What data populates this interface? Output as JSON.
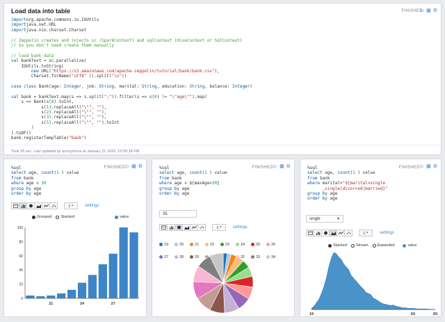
{
  "top": {
    "title": "Load data into table",
    "status": "FINISHED",
    "code_lines": [
      [
        [
          "kw",
          "import"
        ],
        [
          "",
          "org.apache.commons.io.IOUtils"
        ]
      ],
      [
        [
          "kw",
          "import"
        ],
        [
          "",
          "java.net.URL"
        ]
      ],
      [
        [
          "kw",
          "import"
        ],
        [
          "",
          "java.nio.charset.Charset"
        ]
      ],
      [
        [
          "",
          ""
        ]
      ],
      [
        [
          "cm",
          "// Zeppelin creates and injects sc (SparkContext) and sqlContext (HiveContext or SqlContext)"
        ]
      ],
      [
        [
          "cm",
          "// So you don't need create them manually"
        ]
      ],
      [
        [
          "",
          ""
        ]
      ],
      [
        [
          "cm",
          "// load bank data"
        ]
      ],
      [
        [
          "kw",
          "val"
        ],
        [
          "",
          " bankText = sc.parallelize("
        ]
      ],
      [
        [
          "",
          "    IOUtils.toString("
        ]
      ],
      [
        [
          "",
          "        "
        ],
        [
          "kw",
          "new"
        ],
        [
          "",
          " URL("
        ],
        [
          "st",
          "\"https://s3.amazonaws.com/apache-zeppelin/tutorial/bank/bank.csv\""
        ],
        [
          "",
          "),"
        ]
      ],
      [
        [
          "",
          "        Charset.forName("
        ],
        [
          "st",
          "\"utf8\""
        ],
        [
          "",
          " )).split("
        ],
        [
          "st",
          "\"\\n\""
        ],
        [
          "",
          "))"
        ]
      ],
      [
        [
          "",
          ""
        ]
      ],
      [
        [
          "kw",
          "case class"
        ],
        [
          "",
          " Bank(age: "
        ],
        [
          "kw",
          "Integer"
        ],
        [
          "",
          ", job: "
        ],
        [
          "kw",
          "String"
        ],
        [
          "",
          ", marital: "
        ],
        [
          "kw",
          "String"
        ],
        [
          "",
          ", education: "
        ],
        [
          "kw",
          "String"
        ],
        [
          "",
          ", balance: "
        ],
        [
          "kw",
          "Integer"
        ],
        [
          "",
          ")"
        ]
      ],
      [
        [
          "",
          ""
        ]
      ],
      [
        [
          "kw",
          "val"
        ],
        [
          "",
          " bank = bankText.map(s => s.split("
        ],
        [
          "st",
          "\";\""
        ],
        [
          "",
          ")).filter(s => s("
        ],
        [
          "nu",
          "0"
        ],
        [
          "",
          ") != "
        ],
        [
          "st",
          "\"\\\"age\\\"\""
        ],
        [
          "",
          ").map("
        ]
      ],
      [
        [
          "",
          "    s => Bank(s("
        ],
        [
          "nu",
          "0"
        ],
        [
          "",
          ").toInt,"
        ]
      ],
      [
        [
          "",
          "            s("
        ],
        [
          "nu",
          "1"
        ],
        [
          "",
          ").replaceAll("
        ],
        [
          "st",
          "\"\\\"\""
        ],
        [
          "",
          ", "
        ],
        [
          "st",
          "\"\""
        ],
        [
          "",
          "),"
        ]
      ],
      [
        [
          "",
          "            s("
        ],
        [
          "nu",
          "2"
        ],
        [
          "",
          ").replaceAll("
        ],
        [
          "st",
          "\"\\\"\""
        ],
        [
          "",
          ", "
        ],
        [
          "st",
          "\"\""
        ],
        [
          "",
          "),"
        ]
      ],
      [
        [
          "",
          "            s("
        ],
        [
          "nu",
          "3"
        ],
        [
          "",
          ").replaceAll("
        ],
        [
          "st",
          "\"\\\"\""
        ],
        [
          "",
          ", "
        ],
        [
          "st",
          "\"\""
        ],
        [
          "",
          "),"
        ]
      ],
      [
        [
          "",
          "            s("
        ],
        [
          "nu",
          "5"
        ],
        [
          "",
          ").replaceAll("
        ],
        [
          "st",
          "\"\\\"\""
        ],
        [
          "",
          ", "
        ],
        [
          "st",
          "\"\""
        ],
        [
          "",
          ").toInt"
        ]
      ],
      [
        [
          "",
          "        )"
        ]
      ],
      [
        [
          "",
          ").toDF()"
        ]
      ],
      [
        [
          "",
          "bank.registerTempTable("
        ],
        [
          "st",
          "\"bank\""
        ],
        [
          "",
          ")"
        ]
      ]
    ],
    "footer": "Took 26 sec. Last updated by anonymous at January 21 2020, 10:59:18 PM."
  },
  "panels": [
    {
      "status": "FINISHED",
      "code_lines": [
        [
          [
            "",
            "%sql"
          ]
        ],
        [
          [
            "kw",
            "select"
          ],
          [
            "",
            " age, "
          ],
          [
            "kw",
            "count"
          ],
          [
            "",
            "("
          ],
          [
            "nu",
            "1"
          ],
          [
            "",
            " ) value"
          ]
        ],
        [
          [
            "kw",
            "from"
          ],
          [
            "",
            " bank"
          ]
        ],
        [
          [
            "kw",
            "where"
          ],
          [
            "",
            " age < "
          ],
          [
            "nu",
            "30"
          ]
        ],
        [
          [
            "kw",
            "group by"
          ],
          [
            "",
            " age"
          ]
        ],
        [
          [
            "kw",
            "order by"
          ],
          [
            "",
            " age"
          ]
        ]
      ],
      "settings": "settings",
      "legend": {
        "grouped": "Grouped",
        "stacked": "Stacked",
        "value": "value"
      }
    },
    {
      "status": "FINISHED",
      "code_lines": [
        [
          [
            "",
            "%sql"
          ]
        ],
        [
          [
            "kw",
            "select"
          ],
          [
            "",
            " age, "
          ],
          [
            "kw",
            "count"
          ],
          [
            "",
            "("
          ],
          [
            "nu",
            "1"
          ],
          [
            "",
            " ) value"
          ]
        ],
        [
          [
            "kw",
            "from"
          ],
          [
            "",
            " bank"
          ]
        ],
        [
          [
            "kw",
            "where"
          ],
          [
            "",
            " age < ${maxAge="
          ],
          [
            "nu",
            "30"
          ],
          [
            "",
            "}"
          ]
        ],
        [
          [
            "kw",
            "group by"
          ],
          [
            "",
            " age"
          ]
        ],
        [
          [
            "kw",
            "order by"
          ],
          [
            "",
            " age"
          ]
        ]
      ],
      "input_value": "35",
      "settings": "settings"
    },
    {
      "status": "FINISHED",
      "code_lines": [
        [
          [
            "",
            "%sql"
          ]
        ],
        [
          [
            "kw",
            "select"
          ],
          [
            "",
            " age, "
          ],
          [
            "kw",
            "count"
          ],
          [
            "",
            "("
          ],
          [
            "nu",
            "1"
          ],
          [
            "",
            " ) value"
          ]
        ],
        [
          [
            "kw",
            "from"
          ],
          [
            "",
            " bank"
          ]
        ],
        [
          [
            "kw",
            "where"
          ],
          [
            "",
            " marital="
          ],
          [
            "st",
            "\"${marital=single"
          ]
        ],
        [
          [
            "st",
            "      ,single|divorced|married}\""
          ]
        ],
        [
          [
            "kw",
            "group by"
          ],
          [
            "",
            " age"
          ]
        ],
        [
          [
            "kw",
            "order by"
          ],
          [
            "",
            " age"
          ]
        ]
      ],
      "select_value": "single",
      "settings": "settings",
      "legend": {
        "stacked": "Stacked",
        "stream": "Stream",
        "expanded": "Expanded",
        "value": "value"
      }
    }
  ],
  "colors": {
    "bar": "#3d85c6",
    "area": "#4a93c8",
    "pie": [
      "#1f77b4",
      "#aec7e8",
      "#ff7f0e",
      "#ffbb78",
      "#2ca02c",
      "#98df8a",
      "#d62728",
      "#ff9896",
      "#9467bd",
      "#c5b0d5",
      "#8c564b",
      "#c49c94",
      "#e377c2",
      "#f7b6d2",
      "#7f7f7f",
      "#c7c7c7",
      "#bcbd22"
    ]
  },
  "chart_data": [
    {
      "type": "bar",
      "categories": [
        "19",
        "20",
        "21",
        "22",
        "23",
        "24",
        "25",
        "26",
        "27",
        "28",
        "29"
      ],
      "values": [
        4,
        3,
        4,
        7,
        12,
        22,
        33,
        48,
        63,
        100,
        93
      ],
      "ylim": [
        0,
        100
      ],
      "yticks": [
        "100",
        "80",
        "60",
        "40",
        "20",
        "0"
      ],
      "xticks": [
        "21",
        "24",
        "27"
      ],
      "legend": [
        "Grouped",
        "Stacked",
        "value"
      ]
    },
    {
      "type": "pie",
      "series": [
        {
          "name": "19",
          "value": 3
        },
        {
          "name": "20",
          "value": 3
        },
        {
          "name": "21",
          "value": 4
        },
        {
          "name": "22",
          "value": 6
        },
        {
          "name": "23",
          "value": 6
        },
        {
          "name": "24",
          "value": 7
        },
        {
          "name": "25",
          "value": 8
        },
        {
          "name": "26",
          "value": 9
        },
        {
          "name": "27",
          "value": 10
        },
        {
          "name": "28",
          "value": 11
        },
        {
          "name": "29",
          "value": 11
        },
        {
          "name": "30",
          "value": 12
        },
        {
          "name": "31",
          "value": 13
        },
        {
          "name": "32",
          "value": 12
        },
        {
          "name": "33",
          "value": 11
        },
        {
          "name": "34",
          "value": 10
        }
      ],
      "legend": [
        "19",
        "20",
        "21",
        "22",
        "23",
        "24",
        "25",
        "26",
        "27",
        "28",
        "29",
        "30",
        "31",
        "32",
        "33",
        "34"
      ]
    },
    {
      "type": "area",
      "x": [
        19,
        20,
        21,
        22,
        23,
        24,
        25,
        26,
        27,
        28,
        29,
        30,
        31,
        32,
        33,
        34,
        35,
        36,
        37,
        38,
        39,
        40,
        41,
        42,
        43,
        44,
        45,
        46,
        47,
        48,
        49,
        50,
        51,
        52,
        53,
        54,
        55,
        56,
        57,
        58,
        59,
        60,
        62,
        65,
        69
      ],
      "y": [
        2,
        6,
        12,
        18,
        28,
        40,
        55,
        75,
        90,
        100,
        98,
        92,
        88,
        80,
        75,
        70,
        60,
        55,
        50,
        45,
        40,
        36,
        30,
        28,
        26,
        20,
        18,
        15,
        12,
        10,
        9,
        8,
        7,
        8,
        6,
        5,
        4,
        3,
        3,
        2,
        2,
        2,
        1,
        1,
        0
      ],
      "ylim": [
        0,
        100
      ],
      "xticks": [
        "19",
        "60",
        "69"
      ],
      "legend": [
        "Stacked",
        "Stream",
        "Expanded",
        "value"
      ]
    }
  ]
}
